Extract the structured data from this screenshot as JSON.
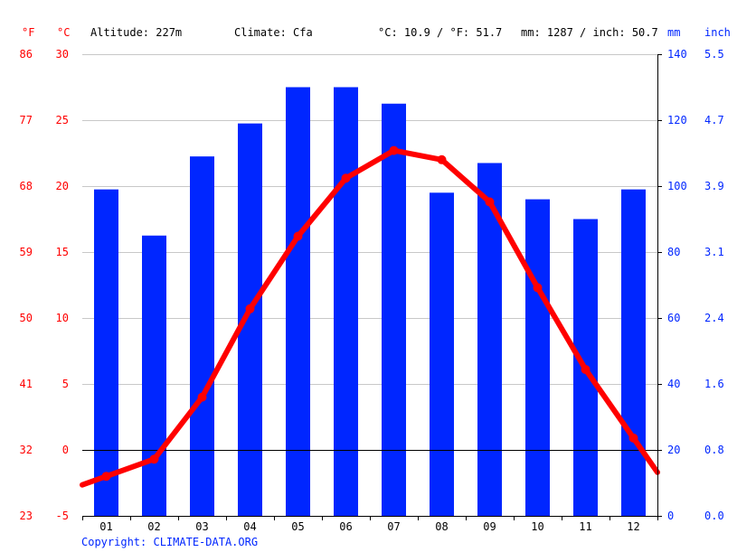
{
  "header": {
    "unit_f": "°F",
    "unit_c": "°C",
    "altitude": "Altitude: 227m",
    "climate": "Climate: Cfa",
    "temp_summary": "°C: 10.9 / °F: 51.7",
    "precip_summary": "mm: 1287 / inch: 50.7",
    "unit_mm": "mm",
    "unit_inch": "inch"
  },
  "copyright": "Copyright: CLIMATE-DATA.ORG",
  "colors": {
    "precip_bar": "#0026ff",
    "temp_line": "#ff0000",
    "grid": "#c8c8c8",
    "zero_line": "#000000"
  },
  "chart_data": {
    "type": "bar",
    "categories": [
      "01",
      "02",
      "03",
      "04",
      "05",
      "06",
      "07",
      "08",
      "09",
      "10",
      "11",
      "12"
    ],
    "series": [
      {
        "values": [
          99,
          85,
          109,
          119,
          130,
          130,
          125,
          98,
          107,
          96,
          90,
          99
        ],
        "unit": "mm",
        "axis": "right",
        "kind": "bar"
      },
      {
        "values": [
          -2.0,
          -0.7,
          4.0,
          10.7,
          16.2,
          20.6,
          22.7,
          22.0,
          18.8,
          12.3,
          6.1,
          0.9
        ],
        "unit": "°C",
        "axis": "left",
        "kind": "line"
      }
    ],
    "y_left_celsius": {
      "ticks": [
        -5,
        0,
        5,
        10,
        15,
        20,
        25,
        30
      ],
      "range": [
        -5,
        30
      ]
    },
    "y_left_fahrenheit": {
      "ticks": [
        23,
        32,
        41,
        50,
        59,
        68,
        77,
        86
      ]
    },
    "y_right_mm": {
      "ticks": [
        0,
        20,
        40,
        60,
        80,
        100,
        120,
        140
      ],
      "range": [
        0,
        140
      ]
    },
    "y_right_inch": {
      "ticks": [
        "0.0",
        "0.8",
        "1.6",
        "2.4",
        "3.1",
        "3.9",
        "4.7",
        "5.5"
      ]
    },
    "grid": true,
    "legend": "none"
  }
}
